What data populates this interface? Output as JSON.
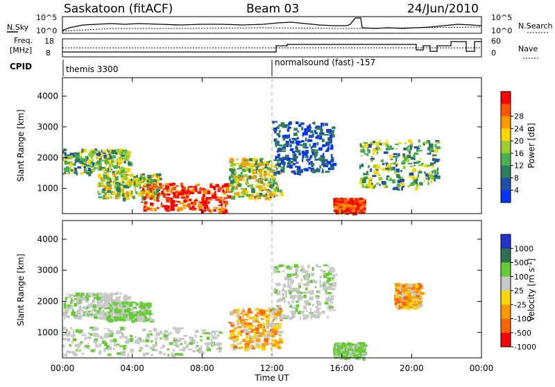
{
  "header": {
    "station": "Saskatoon (fitACF)",
    "beam": "Beam 03",
    "date": "24/Jun/2010"
  },
  "noise_panel": {
    "left_label": "N.Sky",
    "right_label": "N.Search",
    "left_ticks": [
      "10^5",
      "10^0"
    ],
    "right_ticks": [
      "10^5",
      "10^0"
    ]
  },
  "freq_panel": {
    "left_label_1": "Freq.",
    "left_label_2": "[MHz]",
    "right_label": "Nave",
    "left_ticks": [
      "18",
      "8"
    ],
    "right_ticks": [
      "60",
      "0"
    ]
  },
  "cpid": {
    "label": "CPID",
    "programs": [
      {
        "name": "themis 3300",
        "start_hour": 0
      },
      {
        "name": "normalsound (fast) -157",
        "start_hour": 12
      }
    ]
  },
  "chart_data": [
    {
      "type": "heatmap",
      "title": "Power",
      "xlabel": "",
      "ylabel": "Slant Range [km]",
      "x_range_hours": [
        0,
        24
      ],
      "ylim": [
        180,
        4600
      ],
      "y_ticks": [
        "1000",
        "2000",
        "3000",
        "4000"
      ],
      "colorbar": {
        "label": "Power [dB]",
        "ticks": [
          "4",
          "8",
          "12",
          "16",
          "20",
          "24",
          "28"
        ],
        "colors": [
          "#0033ff",
          "#1f4fa8",
          "#2e7d5e",
          "#4caf50",
          "#9acd32",
          "#ffd700",
          "#ff9900",
          "#ff5500",
          "#ff0000"
        ]
      },
      "echo_regions": [
        {
          "t0": 0.0,
          "t1": 3.8,
          "r0": 1500,
          "r1": 2300,
          "level": "low-mid"
        },
        {
          "t0": 2.0,
          "t1": 5.5,
          "r0": 700,
          "r1": 1500,
          "level": "mid"
        },
        {
          "t0": 4.5,
          "t1": 9.5,
          "r0": 300,
          "r1": 1200,
          "level": "high"
        },
        {
          "t0": 9.5,
          "t1": 12.5,
          "r0": 700,
          "r1": 2000,
          "level": "mid"
        },
        {
          "t0": 12.0,
          "t1": 15.5,
          "r0": 1500,
          "r1": 3200,
          "level": "low"
        },
        {
          "t0": 15.5,
          "t1": 17.2,
          "r0": 250,
          "r1": 700,
          "level": "high"
        },
        {
          "t0": 17.0,
          "t1": 21.5,
          "r0": 1000,
          "r1": 2600,
          "level": "low-mid"
        }
      ]
    },
    {
      "type": "heatmap",
      "title": "Velocity",
      "xlabel": "Time UT",
      "ylabel": "Slant Range [km]",
      "x_range_hours": [
        0,
        24
      ],
      "ylim": [
        180,
        4600
      ],
      "y_ticks": [
        "1000",
        "2000",
        "3000",
        "4000"
      ],
      "x_ticks": [
        "00:00",
        "04:00",
        "08:00",
        "12:00",
        "16:00",
        "20:00",
        "00:00"
      ],
      "colorbar": {
        "label": "Velocity [m s^-1]",
        "ticks": [
          "1000",
          "500",
          "100",
          "25",
          "-25",
          "-100",
          "-500",
          "-1000"
        ],
        "colors": [
          "#2233cc",
          "#2f6f4f",
          "#66cc33",
          "#c8c8c8",
          "#ffd700",
          "#ff9900",
          "#ff6600",
          "#ff0000"
        ]
      },
      "echo_regions": [
        {
          "t0": 0.0,
          "t1": 3.8,
          "r0": 1500,
          "r1": 2300,
          "level": "ground"
        },
        {
          "t0": 2.5,
          "t1": 5.0,
          "r0": 1400,
          "r1": 2000,
          "level": "positive"
        },
        {
          "t0": 0.0,
          "t1": 9.0,
          "r0": 300,
          "r1": 1200,
          "level": "ground"
        },
        {
          "t0": 9.5,
          "t1": 12.5,
          "r0": 500,
          "r1": 1800,
          "level": "negative"
        },
        {
          "t0": 12.0,
          "t1": 15.5,
          "r0": 1500,
          "r1": 3200,
          "level": "ground"
        },
        {
          "t0": 15.5,
          "t1": 17.2,
          "r0": 200,
          "r1": 700,
          "level": "positive"
        },
        {
          "t0": 19.0,
          "t1": 20.5,
          "r0": 1800,
          "r1": 2600,
          "level": "negative"
        }
      ]
    }
  ]
}
